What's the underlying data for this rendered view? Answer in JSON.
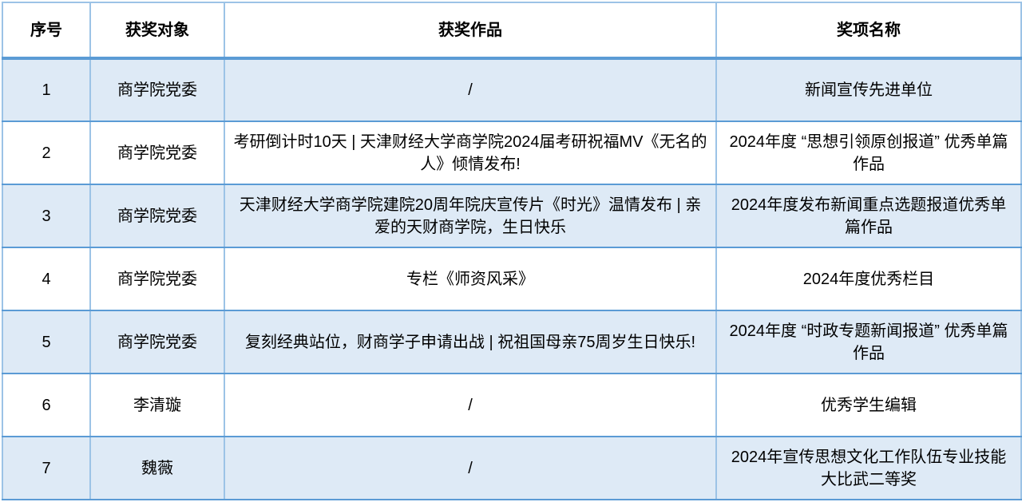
{
  "table": {
    "headers": [
      "序号",
      "获奖对象",
      "获奖作品",
      "奖项名称"
    ],
    "rows": [
      {
        "no": "1",
        "recipient": "商学院党委",
        "work": "/",
        "award": "新闻宣传先进单位"
      },
      {
        "no": "2",
        "recipient": "商学院党委",
        "work": "考研倒计时10天 | 天津财经大学商学院2024届考研祝福MV《无名的人》倾情发布!",
        "award": "2024年度 “思想引领原创报道” 优秀单篇作品"
      },
      {
        "no": "3",
        "recipient": "商学院党委",
        "work": "天津财经大学商学院建院20周年院庆宣传片《时光》温情发布 | 亲爱的天财商学院，生日快乐",
        "award": "2024年度发布新闻重点选题报道优秀单篇作品"
      },
      {
        "no": "4",
        "recipient": "商学院党委",
        "work": "专栏《师资风采》",
        "award": "2024年度优秀栏目"
      },
      {
        "no": "5",
        "recipient": "商学院党委",
        "work": "复刻经典站位，财商学子申请出战 | 祝祖国母亲75周岁生日快乐!",
        "award": "2024年度 “时政专题新闻报道” 优秀单篇作品"
      },
      {
        "no": "6",
        "recipient": "李清璇",
        "work": "/",
        "award": "优秀学生编辑"
      },
      {
        "no": "7",
        "recipient": "魏薇",
        "work": "/",
        "award": "2024年宣传思想文化工作队伍专业技能大比武二等奖"
      }
    ]
  },
  "colors": {
    "band_fill": "#DEEAF6",
    "border_light": "#9CC3E6",
    "border_strong": "#5B9BD5",
    "text": "#000000"
  }
}
